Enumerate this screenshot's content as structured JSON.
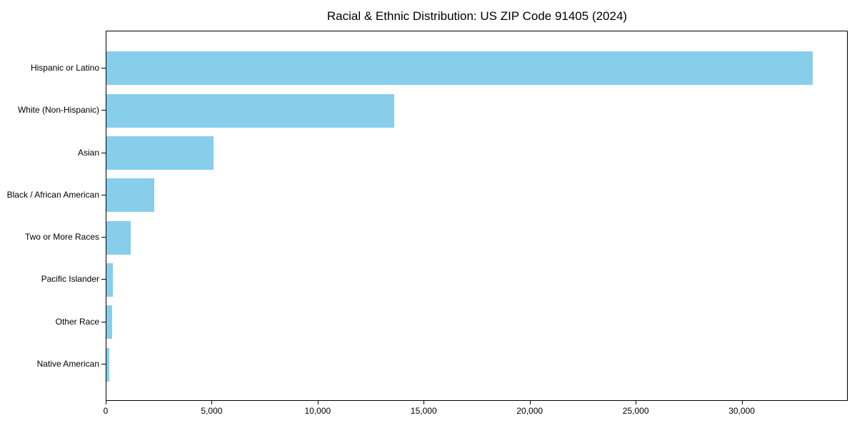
{
  "chart_data": {
    "type": "bar",
    "orientation": "horizontal",
    "title": "Racial & Ethnic Distribution: US ZIP Code 91405 (2024)",
    "categories": [
      "Hispanic or Latino",
      "White (Non-Hispanic)",
      "Asian",
      "Black / African American",
      "Two or More Races",
      "Pacific Islander",
      "Other Race",
      "Native American"
    ],
    "values": [
      33300,
      13560,
      5050,
      2250,
      1150,
      300,
      280,
      120
    ],
    "xlabel": "",
    "ylabel": "",
    "xlim": [
      0,
      35000
    ],
    "x_ticks": [
      0,
      5000,
      10000,
      15000,
      20000,
      25000,
      30000
    ],
    "x_tick_labels": [
      "0",
      "5,000",
      "10,000",
      "15,000",
      "20,000",
      "25,000",
      "30,000"
    ],
    "bar_color": "#87CEEB",
    "axis_color": "#000000",
    "background_color": "#ffffff",
    "grid": false,
    "legend": null
  }
}
